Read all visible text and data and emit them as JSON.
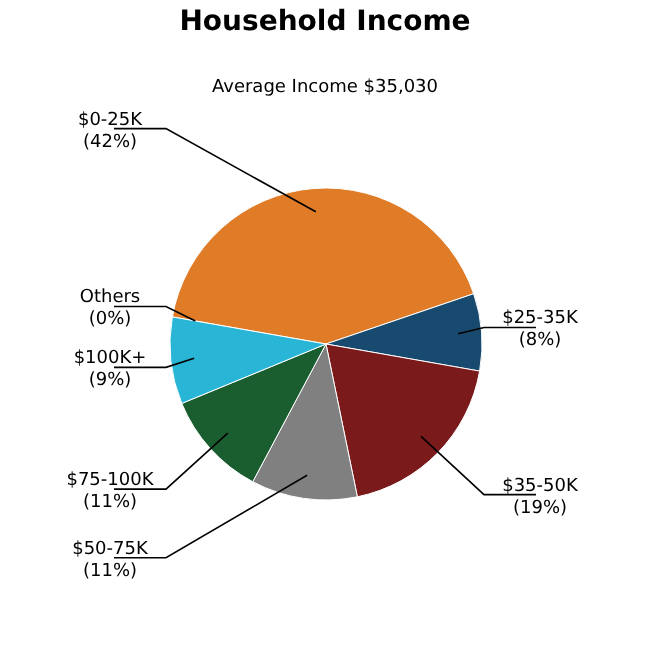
{
  "chart_data": {
    "type": "pie",
    "title": "Household Income",
    "subtitle": "Average Income  $35,030",
    "categories": [
      "$0-25K",
      "$25-35K",
      "$35-50K",
      "$50-75K",
      "$75-100K",
      "$100K+",
      "Others"
    ],
    "values": [
      42,
      8,
      19,
      11,
      11,
      9,
      0
    ],
    "value_labels": [
      "(42%)",
      "(8%)",
      "(19%)",
      "(11%)",
      "(11%)",
      "(9%)",
      "(0%)"
    ],
    "colors": [
      "#e07b28",
      "#174a6e",
      "#7a1a1a",
      "#808080",
      "#1a5e30",
      "#29b6d6",
      "#c0c0c0"
    ],
    "legend": false
  }
}
